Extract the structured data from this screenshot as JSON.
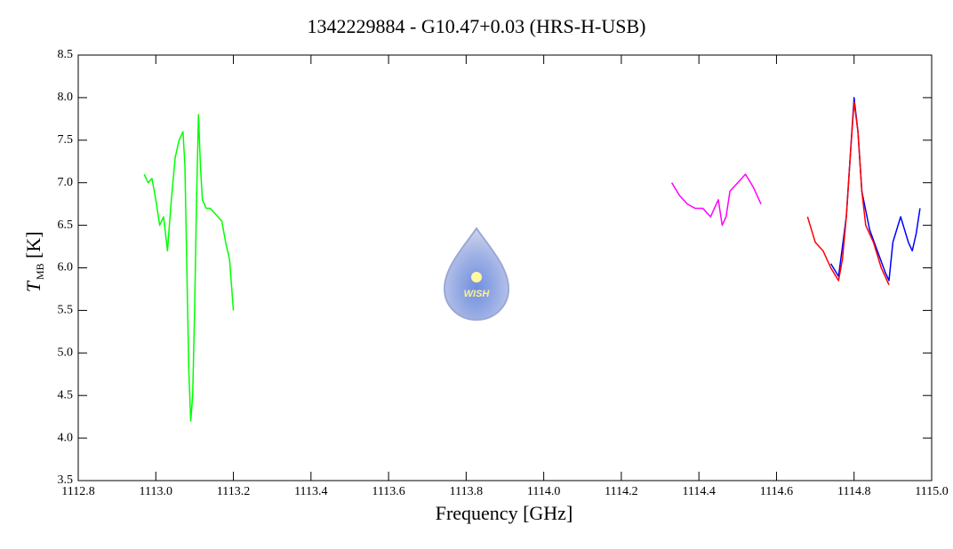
{
  "chart_data": {
    "type": "line",
    "title": "1342229884 - G10.47+0.03 (HRS-H-USB)",
    "xlabel": "Frequency [GHz]",
    "ylabel": {
      "symbol": "T",
      "subscript": "MB",
      "unit": "[K]"
    },
    "logo_text": "WISH",
    "xlim": [
      1112.8,
      1115.0
    ],
    "xticks": [
      {
        "value": 1112.8,
        "label": "1112.8"
      },
      {
        "value": 1113.0,
        "label": "1113.0"
      },
      {
        "value": 1113.2,
        "label": "1113.2"
      },
      {
        "value": 1113.4,
        "label": "1113.4"
      },
      {
        "value": 1113.6,
        "label": "1113.6"
      },
      {
        "value": 1113.8,
        "label": "1113.8"
      },
      {
        "value": 1114.0,
        "label": "1114.0"
      },
      {
        "value": 1114.2,
        "label": "1114.2"
      },
      {
        "value": 1114.4,
        "label": "1114.4"
      },
      {
        "value": 1114.6,
        "label": "1114.6"
      },
      {
        "value": 1114.8,
        "label": "1114.8"
      },
      {
        "value": 1115.0,
        "label": "1115.0"
      }
    ],
    "ylim": [
      3.5,
      8.5
    ],
    "yticks": [
      3.5,
      {
        "value": 4.0,
        "label": "4.0"
      },
      4.5,
      {
        "value": 5.0,
        "label": "5.0"
      },
      5.5,
      {
        "value": 6.0,
        "label": "6.0"
      },
      6.5,
      {
        "value": 7.0,
        "label": "7.0"
      },
      7.5,
      {
        "value": 8.0,
        "label": "8.0"
      },
      8.5
    ],
    "grid": false,
    "series": [
      {
        "color": "#00ff00",
        "x": [
          1112.97,
          1112.98,
          1112.99,
          1113.0,
          1113.01,
          1113.02,
          1113.03,
          1113.04,
          1113.05,
          1113.06,
          1113.07,
          1113.075,
          1113.08,
          1113.085,
          1113.09,
          1113.095,
          1113.1,
          1113.105,
          1113.11,
          1113.115,
          1113.12,
          1113.13,
          1113.14,
          1113.15,
          1113.16,
          1113.17,
          1113.18,
          1113.19,
          1113.2
        ],
        "values": [
          7.1,
          7.0,
          7.05,
          6.8,
          6.5,
          6.6,
          6.2,
          6.8,
          7.3,
          7.5,
          7.6,
          7.2,
          6.0,
          4.8,
          4.2,
          4.5,
          5.5,
          6.8,
          7.8,
          7.2,
          6.8,
          6.7,
          6.7,
          6.65,
          6.6,
          6.55,
          6.3,
          6.1,
          5.5
        ]
      },
      {
        "color": "#ff00ff",
        "x": [
          1114.33,
          1114.35,
          1114.37,
          1114.39,
          1114.41,
          1114.43,
          1114.45,
          1114.46,
          1114.47,
          1114.48,
          1114.5,
          1114.52,
          1114.54,
          1114.56
        ],
        "values": [
          7.0,
          6.85,
          6.75,
          6.7,
          6.7,
          6.6,
          6.8,
          6.5,
          6.6,
          6.9,
          7.0,
          7.1,
          6.95,
          6.75
        ]
      },
      {
        "color": "#0000ff",
        "x": [
          1114.74,
          1114.76,
          1114.78,
          1114.79,
          1114.8,
          1114.81,
          1114.82,
          1114.84,
          1114.86,
          1114.88,
          1114.89,
          1114.9,
          1114.92,
          1114.94,
          1114.95,
          1114.96,
          1114.97
        ],
        "values": [
          6.05,
          5.9,
          6.6,
          7.3,
          8.0,
          7.6,
          6.9,
          6.45,
          6.2,
          5.95,
          5.85,
          6.3,
          6.6,
          6.3,
          6.2,
          6.4,
          6.7
        ]
      },
      {
        "color": "#ff0000",
        "x": [
          1114.68,
          1114.7,
          1114.72,
          1114.74,
          1114.76,
          1114.77,
          1114.78,
          1114.79,
          1114.8,
          1114.81,
          1114.82,
          1114.83,
          1114.84,
          1114.85,
          1114.86,
          1114.87,
          1114.88,
          1114.89
        ],
        "values": [
          6.6,
          6.3,
          6.2,
          6.0,
          5.85,
          6.1,
          6.6,
          7.3,
          7.95,
          7.6,
          6.9,
          6.5,
          6.4,
          6.3,
          6.15,
          6.0,
          5.9,
          5.8
        ]
      }
    ]
  }
}
